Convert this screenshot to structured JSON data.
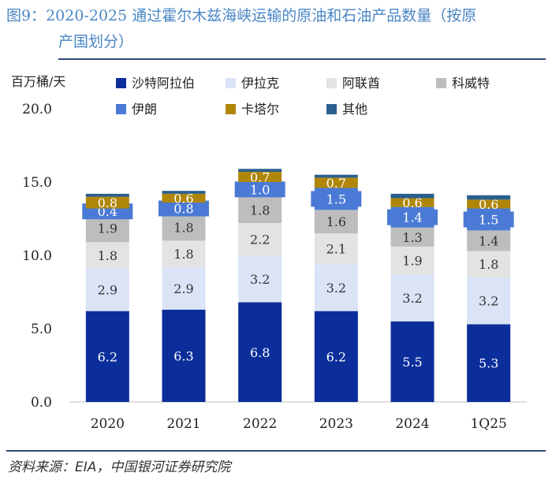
{
  "title": {
    "line1": "图9：2020-2025 通过霍尔木兹海峡运输的原油和石油产品数量（按原",
    "line2": "产国划分）"
  },
  "source": "资料来源：EIA，中国银河证券研究院",
  "chart_data": {
    "type": "bar",
    "stacked": true,
    "ylabel": "百万桶/天",
    "ylim": [
      0,
      20
    ],
    "yticks": [
      "0.0",
      "5.0",
      "10.0",
      "15.0",
      "20.0"
    ],
    "categories": [
      "2020",
      "2021",
      "2022",
      "2023",
      "2024",
      "1Q25"
    ],
    "series": [
      {
        "name": "沙特阿拉伯",
        "color": "#0b2e9a",
        "label_color": "#ffffff",
        "values": [
          6.2,
          6.3,
          6.8,
          6.2,
          5.5,
          5.3
        ]
      },
      {
        "name": "伊拉克",
        "color": "#dbe4f6",
        "label_color": "#333333",
        "values": [
          2.9,
          2.9,
          3.2,
          3.2,
          3.2,
          3.2
        ]
      },
      {
        "name": "阿联酋",
        "color": "#e3e3e3",
        "label_color": "#333333",
        "values": [
          1.8,
          1.8,
          2.2,
          2.1,
          1.9,
          1.8
        ]
      },
      {
        "name": "科威特",
        "color": "#bdbdbd",
        "label_color": "#333333",
        "values": [
          1.9,
          1.8,
          1.8,
          1.6,
          1.3,
          1.4
        ]
      },
      {
        "name": "伊朗",
        "color": "#4a7ad6",
        "label_color": "#ffffff",
        "values": [
          0.4,
          0.8,
          1.0,
          1.5,
          1.4,
          1.5
        ]
      },
      {
        "name": "卡塔尔",
        "color": "#b08608",
        "label_color": "#ffffff",
        "values": [
          0.8,
          0.6,
          0.7,
          0.7,
          0.6,
          0.6
        ]
      },
      {
        "name": "其他",
        "color": "#2a5f8e",
        "label_color": "#ffffff",
        "values": [
          0.2,
          0.2,
          0.2,
          0.2,
          0.3,
          0.3
        ]
      }
    ],
    "value_labels_shown_for": [
      "沙特阿拉伯",
      "伊拉克",
      "阿联酋",
      "科威特",
      "伊朗",
      "卡塔尔"
    ],
    "grid": false,
    "legend": "top"
  }
}
